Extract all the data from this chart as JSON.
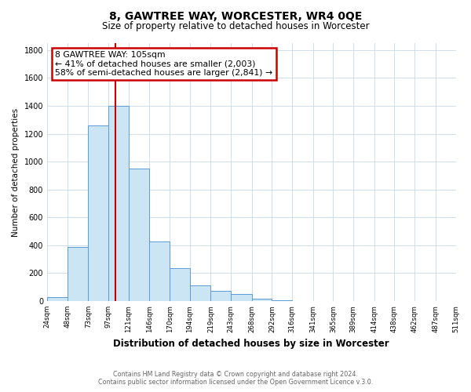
{
  "title": "8, GAWTREE WAY, WORCESTER, WR4 0QE",
  "subtitle": "Size of property relative to detached houses in Worcester",
  "xlabel": "Distribution of detached houses by size in Worcester",
  "ylabel": "Number of detached properties",
  "bar_values": [
    25,
    390,
    1260,
    1400,
    950,
    425,
    235,
    110,
    70,
    50,
    15,
    5,
    2,
    1,
    1,
    0,
    0,
    0,
    0,
    0
  ],
  "bar_color": "#cce5f5",
  "bar_edge_color": "#5b9bd5",
  "vline_x": 105,
  "vline_color": "#cc0000",
  "ylim": [
    0,
    1850
  ],
  "yticks": [
    0,
    200,
    400,
    600,
    800,
    1000,
    1200,
    1400,
    1600,
    1800
  ],
  "annotation_line1": "8 GAWTREE WAY: 105sqm",
  "annotation_line2": "← 41% of detached houses are smaller (2,003)",
  "annotation_line3": "58% of semi-detached houses are larger (2,841) →",
  "annotation_box_color": "#ffffff",
  "annotation_box_edge": "#cc0000",
  "footer": "Contains HM Land Registry data © Crown copyright and database right 2024.\nContains public sector information licensed under the Open Government Licence v.3.0.",
  "bin_edges": [
    24,
    48,
    73,
    97,
    121,
    146,
    170,
    194,
    219,
    243,
    268,
    292,
    316,
    341,
    365,
    389,
    414,
    438,
    462,
    487,
    511
  ],
  "grid_color": "#c8d8e8"
}
